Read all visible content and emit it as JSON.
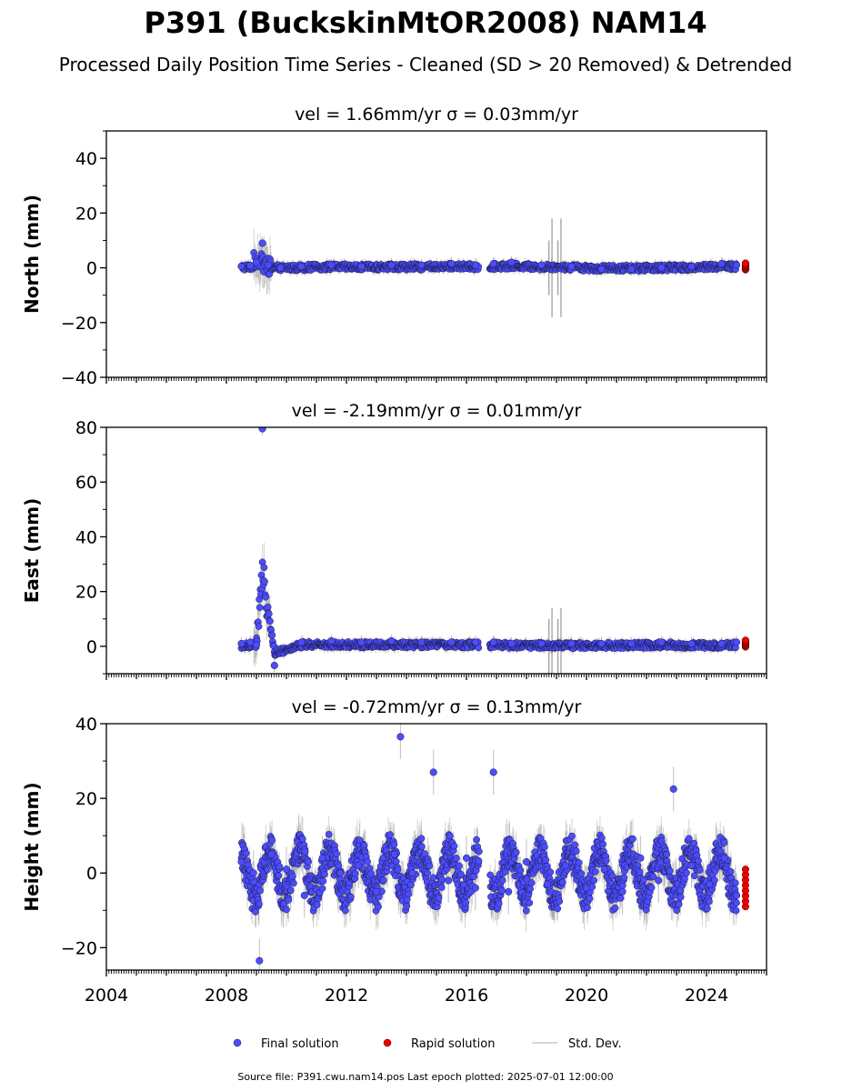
{
  "figure": {
    "title": "P391 (BuckskinMtOR2008) NAM14",
    "subtitle": "Processed Daily Position Time Series - Cleaned (SD > 20 Removed) & Detrended",
    "footer": "Source file: P391.cwu.nam14.pos  Last epoch plotted: 2025-07-01 12:00:00"
  },
  "legend": {
    "final_label": "Final solution",
    "rapid_label": "Rapid solution",
    "std_label": "Std. Dev."
  },
  "colors": {
    "final": "#4c4cff",
    "rapid": "#ee0000",
    "std": "#808080",
    "edge": "#1a1a40"
  },
  "chart_data": [
    {
      "type": "scatter",
      "title": "vel = 1.66mm/yr   σ = 0.03mm/yr",
      "ylabel": "North (mm)",
      "xlim": [
        2004,
        2026
      ],
      "ylim": [
        -40,
        50
      ],
      "yticks": [
        -40,
        -20,
        0,
        20,
        40
      ],
      "xticks": [
        2004,
        2008,
        2012,
        2016,
        2020,
        2024
      ],
      "series": [
        {
          "x": [
            2008.5,
            2008.8,
            2009.0,
            2009.2,
            2009.4,
            2009.8,
            2010.5,
            2011.5,
            2012.5,
            2013.5,
            2014.5,
            2015.5,
            2016.3,
            2016.9,
            2017.5,
            2018.5,
            2019.5,
            2020.5,
            2021.5,
            2022.5,
            2023.5,
            2024.5,
            2025.0
          ],
          "values": [
            0.5,
            0.8,
            2.0,
            9.0,
            1.0,
            0.0,
            0.5,
            1.0,
            0.5,
            1.0,
            1.0,
            1.5,
            1.0,
            1.5,
            2.0,
            1.0,
            0.5,
            -0.5,
            -0.5,
            0.0,
            0.5,
            1.5,
            1.0
          ]
        },
        {
          "x": [
            2025.3
          ],
          "values": [
            0.5
          ]
        }
      ]
    },
    {
      "type": "scatter",
      "title": "vel = -2.19mm/yr   σ = 0.01mm/yr",
      "ylabel": "East (mm)",
      "xlim": [
        2004,
        2026
      ],
      "ylim": [
        -10,
        80
      ],
      "yticks": [
        0,
        20,
        40,
        60,
        80
      ],
      "xticks": [
        2004,
        2008,
        2012,
        2016,
        2020,
        2024
      ],
      "series": [
        {
          "x": [
            2008.5,
            2008.8,
            2009.0,
            2009.2,
            2009.6,
            2010.5,
            2011.5,
            2012.5,
            2013.5,
            2014.5,
            2015.5,
            2016.3,
            2016.9,
            2017.5,
            2018.5,
            2019.5,
            2020.5,
            2021.5,
            2022.5,
            2023.5,
            2024.5,
            2025.0
          ],
          "values": [
            1.0,
            1.5,
            0.5,
            79.5,
            -7.0,
            1.5,
            2.0,
            1.5,
            2.0,
            1.5,
            1.5,
            1.5,
            1.5,
            1.0,
            1.0,
            1.0,
            1.0,
            1.0,
            1.5,
            1.0,
            1.0,
            1.5
          ]
        },
        {
          "x": [
            2025.3
          ],
          "values": [
            1.0
          ]
        }
      ]
    },
    {
      "type": "scatter",
      "title": "vel = -0.72mm/yr   σ = 0.13mm/yr",
      "ylabel": "Height (mm)",
      "xlim": [
        2004,
        2026
      ],
      "ylim": [
        -26,
        40
      ],
      "yticks": [
        -20,
        0,
        20,
        40
      ],
      "xticks": [
        2004,
        2008,
        2012,
        2016,
        2020,
        2024
      ],
      "series": [
        {
          "x": [
            2008.5,
            2008.9,
            2009.1,
            2009.5,
            2010.0,
            2010.6,
            2011.2,
            2011.8,
            2012.4,
            2013.0,
            2013.6,
            2013.8,
            2014.2,
            2014.9,
            2015.4,
            2016.0,
            2016.3,
            2016.9,
            2017.4,
            2018.0,
            2018.7,
            2019.3,
            2020.0,
            2020.6,
            2021.2,
            2021.8,
            2022.4,
            2022.9,
            2023.5,
            2024.1,
            2024.6,
            2025.0
          ],
          "values": [
            3.0,
            0.0,
            -23.5,
            5.0,
            1.0,
            -6.0,
            4.0,
            0.0,
            2.0,
            -5.0,
            5.0,
            36.5,
            0.0,
            27.0,
            -2.0,
            4.0,
            -4.0,
            27.0,
            -5.0,
            3.0,
            -3.0,
            2.0,
            -4.0,
            1.0,
            -5.0,
            4.0,
            -2.0,
            22.5,
            2.0,
            -3.0,
            4.0,
            -6.0
          ]
        },
        {
          "x": [
            2025.3
          ],
          "values": [
            -4.0
          ]
        }
      ]
    }
  ]
}
